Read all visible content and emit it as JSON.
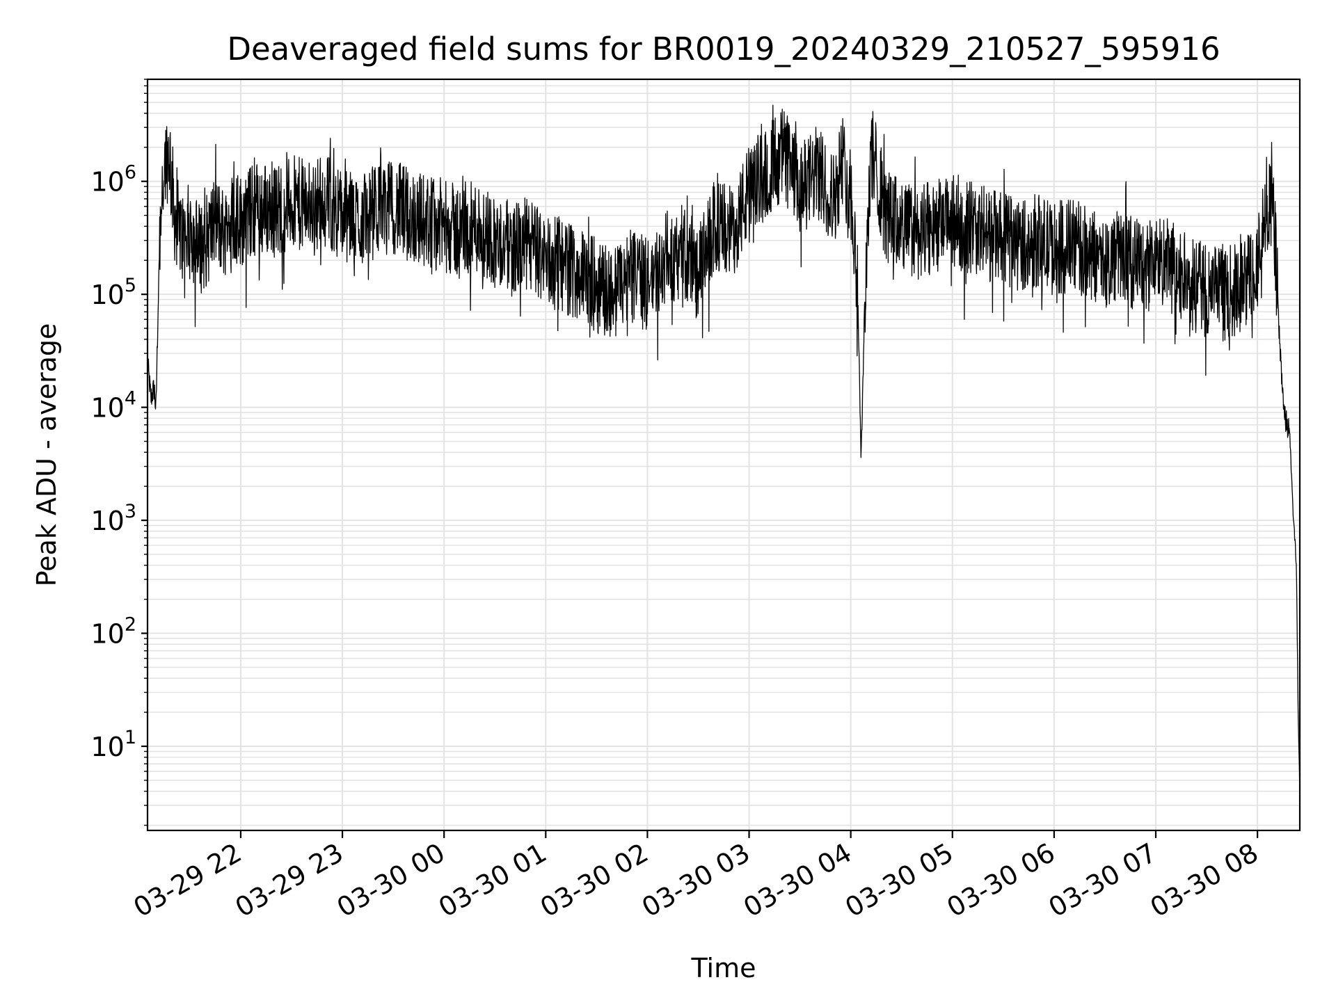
{
  "chart_data": {
    "type": "line",
    "title": "Deaveraged field sums for BR0019_20240329_210527_595916",
    "xlabel": "Time",
    "ylabel": "Peak ADU - average",
    "yscale": "log",
    "ylim": [
      1.8,
      8000000
    ],
    "xlim": [
      "2024-03-29 21:05",
      "2024-03-30 08:25"
    ],
    "grid": true,
    "grid_color": "#e3e3e3",
    "line_color": "#000000",
    "x_ticks": [
      "03-29 22",
      "03-29 23",
      "03-30 00",
      "03-30 01",
      "03-30 02",
      "03-30 03",
      "03-30 04",
      "03-30 05",
      "03-30 06",
      "03-30 07",
      "03-30 08"
    ],
    "y_ticks": [
      {
        "base": "10",
        "exp": "1"
      },
      {
        "base": "10",
        "exp": "2"
      },
      {
        "base": "10",
        "exp": "3"
      },
      {
        "base": "10",
        "exp": "4"
      },
      {
        "base": "10",
        "exp": "5"
      },
      {
        "base": "10",
        "exp": "6"
      }
    ],
    "series": [
      {
        "x": [
          "03-29 21:05",
          "03-29 21:07",
          "03-29 21:09",
          "03-29 21:10",
          "03-29 21:12",
          "03-29 21:15",
          "03-29 21:18",
          "03-29 21:21",
          "03-29 21:24",
          "03-29 21:27",
          "03-29 21:30",
          "03-29 21:35",
          "03-29 21:40",
          "03-29 21:45",
          "03-29 21:50",
          "03-29 21:55",
          "03-29 22:00",
          "03-29 22:10",
          "03-29 22:20",
          "03-29 22:30",
          "03-29 22:40",
          "03-29 22:50",
          "03-29 23:00",
          "03-29 23:10",
          "03-29 23:20",
          "03-29 23:30",
          "03-29 23:40",
          "03-29 23:50",
          "03-30 00:00",
          "03-30 00:10",
          "03-30 00:20",
          "03-30 00:30",
          "03-30 00:40",
          "03-30 00:50",
          "03-30 01:00",
          "03-30 01:10",
          "03-30 01:20",
          "03-30 01:30",
          "03-30 01:40",
          "03-30 01:50",
          "03-30 02:00",
          "03-30 02:10",
          "03-30 02:20",
          "03-30 02:30",
          "03-30 02:40",
          "03-30 02:50",
          "03-30 03:00",
          "03-30 03:10",
          "03-30 03:20",
          "03-30 03:30",
          "03-30 03:40",
          "03-30 03:50",
          "03-30 03:55",
          "03-30 04:00",
          "03-30 04:04",
          "03-30 04:06",
          "03-30 04:08",
          "03-30 04:12",
          "03-30 04:16",
          "03-30 04:20",
          "03-30 04:25",
          "03-30 04:30",
          "03-30 04:40",
          "03-30 04:50",
          "03-30 05:00",
          "03-30 05:10",
          "03-30 05:20",
          "03-30 05:30",
          "03-30 05:40",
          "03-30 05:50",
          "03-30 06:00",
          "03-30 06:10",
          "03-30 06:20",
          "03-30 06:30",
          "03-30 06:40",
          "03-30 06:50",
          "03-30 07:00",
          "03-30 07:10",
          "03-30 07:20",
          "03-30 07:30",
          "03-30 07:40",
          "03-30 07:50",
          "03-30 08:00",
          "03-30 08:05",
          "03-30 08:08",
          "03-30 08:10",
          "03-30 08:13",
          "03-30 08:16",
          "03-30 08:19",
          "03-30 08:21",
          "03-30 08:23",
          "03-30 08:24",
          "03-30 08:25"
        ],
        "y": [
          25000,
          12000,
          15000,
          9000,
          300000,
          1500000,
          1800000,
          500000,
          350000,
          300000,
          400000,
          250000,
          300000,
          450000,
          350000,
          500000,
          450000,
          600000,
          550000,
          650000,
          600000,
          700000,
          500000,
          450000,
          550000,
          600000,
          500000,
          450000,
          400000,
          350000,
          400000,
          300000,
          250000,
          280000,
          200000,
          180000,
          150000,
          120000,
          100000,
          150000,
          120000,
          200000,
          250000,
          150000,
          400000,
          350000,
          800000,
          1200000,
          1800000,
          800000,
          1200000,
          700000,
          1500000,
          800000,
          150000,
          3500,
          60000,
          1800000,
          1200000,
          500000,
          450000,
          400000,
          350000,
          400000,
          450000,
          400000,
          350000,
          300000,
          280000,
          300000,
          250000,
          280000,
          230000,
          200000,
          220000,
          180000,
          200000,
          180000,
          120000,
          110000,
          100000,
          110000,
          200000,
          500000,
          600000,
          400000,
          40000,
          8000,
          6000,
          1200,
          400,
          20,
          4
        ]
      }
    ]
  }
}
